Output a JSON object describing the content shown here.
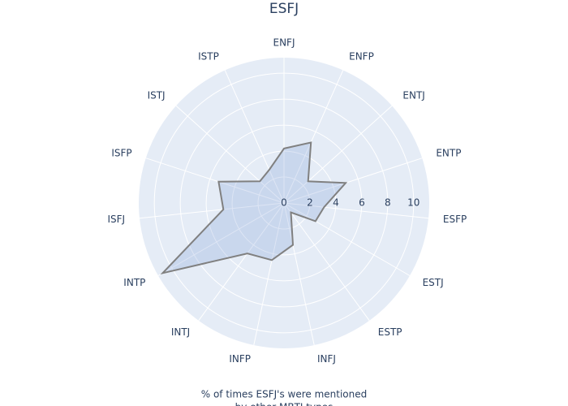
{
  "chart_data": {
    "type": "radar",
    "title": "ESFJ",
    "categories": [
      "ENFJ",
      "ENFP",
      "ENTJ",
      "ENTP",
      "ESFP",
      "ESTJ",
      "ESTP",
      "INFJ",
      "INFP",
      "INTJ",
      "INTP",
      "ISFJ",
      "ISFP",
      "ISTJ",
      "ISTP"
    ],
    "values": [
      4.2,
      5.1,
      2.5,
      5.0,
      3.1,
      2.8,
      0.9,
      3.3,
      4.5,
      4.8,
      10.8,
      4.7,
      5.3,
      2.5,
      2.8
    ],
    "line_color": "#808080",
    "fill_color": "rgba(120,150,210,0.25)",
    "rlim": [
      0,
      11.2
    ],
    "rticks": [
      0,
      2,
      4,
      6,
      8,
      10
    ],
    "grid": true,
    "annotation_lines": [
      "% of times ESFJ's were mentioned",
      "by other MBTI types"
    ]
  }
}
